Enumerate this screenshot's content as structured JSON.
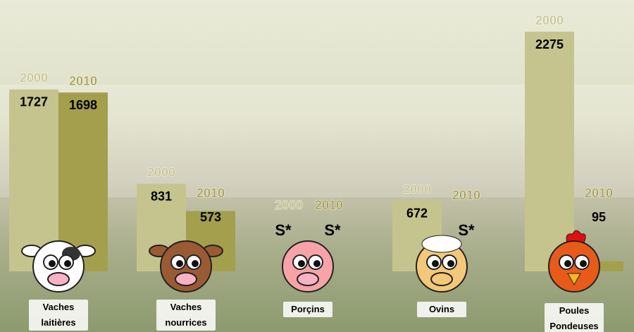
{
  "chart_data": {
    "type": "bar",
    "categories": [
      "Vaches laitières",
      "Vaches nourrices",
      "Porçins",
      "Ovins",
      "Poules Pondeuses"
    ],
    "series": [
      {
        "name": "2000",
        "color": "#c6c48e",
        "values": [
          1727,
          831,
          null,
          672,
          2275
        ],
        "value_labels": [
          "1727",
          "831",
          "S*",
          "672",
          "2275"
        ]
      },
      {
        "name": "2010",
        "color": "#a39f4c",
        "values": [
          1698,
          573,
          null,
          null,
          95
        ],
        "value_labels": [
          "1698",
          "573",
          "S*",
          "S*",
          "95"
        ]
      }
    ]
  }
}
